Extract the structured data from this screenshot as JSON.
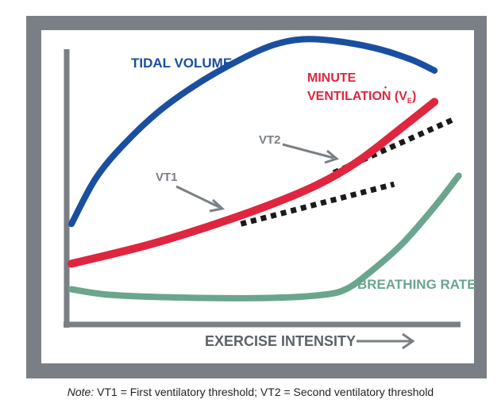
{
  "chart_data": {
    "type": "line",
    "xlabel": "EXERCISE INTENSITY",
    "ylabel": "",
    "x_ticks_shown": false,
    "y_ticks_shown": false,
    "grid": false,
    "series": [
      {
        "name": "TIDAL VOLUME",
        "color": "#1a4fa0",
        "x": [
          0.0,
          0.06,
          0.13,
          0.22,
          0.32,
          0.42,
          0.5,
          0.57,
          0.65,
          0.75,
          0.84,
          0.9
        ],
        "y": [
          0.34,
          0.5,
          0.62,
          0.74,
          0.84,
          0.92,
          0.97,
          0.99,
          0.985,
          0.96,
          0.92,
          0.88
        ]
      },
      {
        "name": "MINUTE VENTILATION (V̇E)",
        "color": "#e0253f",
        "x": [
          0.0,
          0.2,
          0.4,
          0.55,
          0.64,
          0.72,
          0.82,
          0.9
        ],
        "y": [
          0.2,
          0.27,
          0.36,
          0.44,
          0.5,
          0.57,
          0.68,
          0.77
        ]
      },
      {
        "name": "BREATHING RATE",
        "color": "#6aa58e",
        "x": [
          0.0,
          0.1,
          0.3,
          0.5,
          0.62,
          0.68,
          0.74,
          0.82,
          0.9,
          0.96
        ],
        "y": [
          0.11,
          0.09,
          0.08,
          0.08,
          0.09,
          0.11,
          0.17,
          0.27,
          0.4,
          0.51
        ]
      },
      {
        "name": "",
        "style": "dotted",
        "color": "#1a1a1a",
        "x": [
          0.42,
          0.8
        ],
        "y": [
          0.34,
          0.48
        ]
      },
      {
        "name": "",
        "style": "dotted",
        "color": "#1a1a1a",
        "x": [
          0.65,
          0.95
        ],
        "y": [
          0.52,
          0.71
        ]
      }
    ],
    "annotations": [
      {
        "text": "VT1",
        "points_to": {
          "x": 0.4,
          "y": 0.36
        }
      },
      {
        "text": "VT2",
        "points_to": {
          "x": 0.64,
          "y": 0.5
        }
      }
    ]
  },
  "labels": {
    "tidal_volume": "TIDAL VOLUME",
    "minute_line1": "MINUTE",
    "minute_line2": "VENTILATION (V",
    "minute_sub": "E",
    "minute_close": ")",
    "minute_dot": "•",
    "breathing_rate": "BREATHING RATE",
    "vt1": "VT1",
    "vt2": "VT2",
    "xlabel": "EXERCISE INTENSITY"
  },
  "note": {
    "prefix": "Note:",
    "text": " VT1 = First ventilatory threshold; VT2 = Second ventilatory threshold"
  },
  "colors": {
    "frame": "#7a7f85",
    "axis": "#7a7f85",
    "annotation_arrow": "#7a7f85"
  }
}
